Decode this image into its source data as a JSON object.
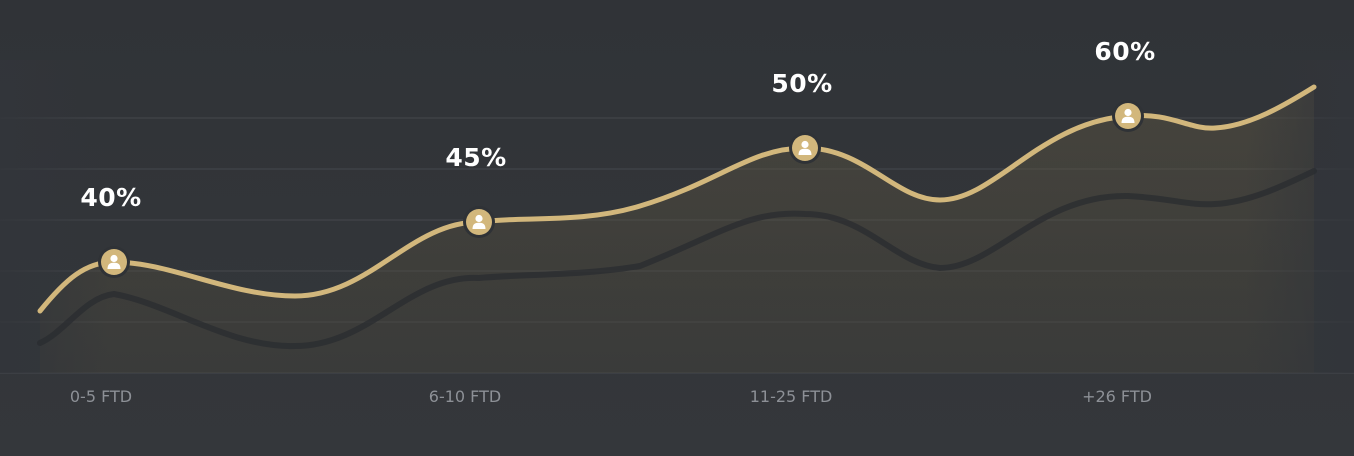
{
  "chart_data": {
    "type": "line",
    "categories": [
      "0-5 FTD",
      "6-10 FTD",
      "11-25 FTD",
      "+26 FTD"
    ],
    "values": [
      40,
      45,
      50,
      60
    ],
    "value_labels": [
      "40%",
      "45%",
      "50%",
      "60%"
    ],
    "ylim": [
      30,
      70
    ],
    "grid": true,
    "legend": "none",
    "marker_icon": "user-icon",
    "colors": {
      "line": "#d2b77c",
      "marker_fill": "#d2b77c",
      "marker_ring": "#2f3236",
      "grid": "#45484d",
      "background": "#32353a",
      "shadow_line": "#2a2c30",
      "value_label": "#ffffff",
      "tick_label": "#8d9096"
    }
  }
}
